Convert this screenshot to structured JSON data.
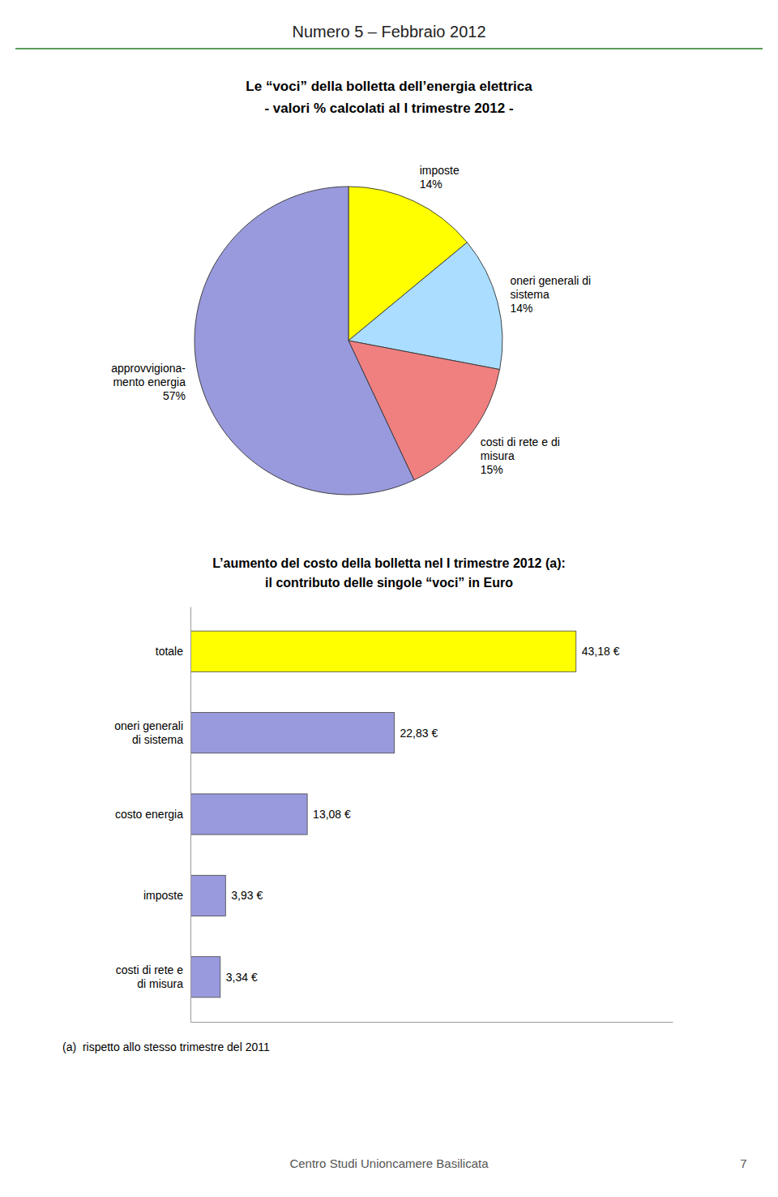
{
  "header": "Numero 5 – Febbraio 2012",
  "chart_data": [
    {
      "type": "pie",
      "title": "Le “voci” della bolletta dell’energia elettrica",
      "subtitle": "- valori % calcolati al I trimestre 2012 -",
      "categories": [
        "imposte",
        "oneri generali di\nsistema",
        "costi di rete e di\nmisura",
        "approvvigiona-\nmento energia"
      ],
      "values": [
        14,
        14,
        15,
        57
      ],
      "value_labels": [
        "14%",
        "14%",
        "15%",
        "57%"
      ],
      "colors": [
        "#ffff00",
        "#aaddff",
        "#f08080",
        "#9999dd"
      ],
      "data_labels": true
    },
    {
      "type": "bar",
      "orientation": "horizontal",
      "title": "L’aumento del costo della bolletta nel I trimestre 2012 (a):",
      "subtitle": "il contributo delle singole “voci” in Euro",
      "categories": [
        "totale",
        "oneri generali\ndi sistema",
        "costo energia",
        "imposte",
        "costi di rete e\ndi misura"
      ],
      "values": [
        43.18,
        22.83,
        13.08,
        3.93,
        3.34
      ],
      "value_labels": [
        "43,18 €",
        "22,83 €",
        "13,08 €",
        "3,93 €",
        "3,34 €"
      ],
      "colors": [
        "#ffff00",
        "#9999dd",
        "#9999dd",
        "#9999dd",
        "#9999dd"
      ],
      "xlim": [
        0,
        54
      ],
      "tick_labels": "y",
      "data_labels": true,
      "annotations": [
        "(a)  rispetto allo stesso trimestre del 2011"
      ]
    }
  ],
  "footer": [
    "Centro Studi Unioncamere Basilicata",
    "7"
  ]
}
